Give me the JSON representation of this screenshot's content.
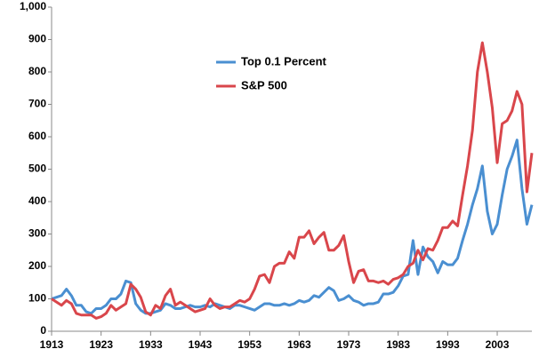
{
  "chart_data": {
    "type": "line",
    "x": [
      1913,
      1914,
      1915,
      1916,
      1917,
      1918,
      1919,
      1920,
      1921,
      1922,
      1923,
      1924,
      1925,
      1926,
      1927,
      1928,
      1929,
      1930,
      1931,
      1932,
      1933,
      1934,
      1935,
      1936,
      1937,
      1938,
      1939,
      1940,
      1941,
      1942,
      1943,
      1944,
      1945,
      1946,
      1947,
      1948,
      1949,
      1950,
      1951,
      1952,
      1953,
      1954,
      1955,
      1956,
      1957,
      1958,
      1959,
      1960,
      1961,
      1962,
      1963,
      1964,
      1965,
      1966,
      1967,
      1968,
      1969,
      1970,
      1971,
      1972,
      1973,
      1974,
      1975,
      1976,
      1977,
      1978,
      1979,
      1980,
      1981,
      1982,
      1983,
      1984,
      1985,
      1986,
      1987,
      1988,
      1989,
      1990,
      1991,
      1992,
      1993,
      1994,
      1995,
      1996,
      1997,
      1998,
      1999,
      2000,
      2001,
      2002,
      2003,
      2004,
      2005,
      2006,
      2007,
      2008,
      2009,
      2010
    ],
    "series": [
      {
        "name": "Top 0.1 Percent",
        "color": "#4a8fd1",
        "values": [
          100,
          105,
          110,
          130,
          110,
          80,
          80,
          60,
          55,
          70,
          70,
          80,
          100,
          100,
          115,
          155,
          150,
          85,
          65,
          55,
          55,
          60,
          65,
          85,
          80,
          70,
          70,
          75,
          80,
          75,
          75,
          80,
          75,
          85,
          80,
          75,
          70,
          80,
          80,
          75,
          70,
          65,
          75,
          85,
          85,
          80,
          80,
          85,
          80,
          85,
          95,
          90,
          95,
          110,
          105,
          120,
          135,
          125,
          95,
          100,
          110,
          95,
          90,
          80,
          85,
          85,
          90,
          115,
          115,
          120,
          140,
          170,
          175,
          280,
          175,
          260,
          230,
          215,
          180,
          215,
          205,
          205,
          225,
          280,
          330,
          390,
          440,
          510,
          370,
          300,
          330,
          420,
          500,
          540,
          590,
          440,
          330,
          390
        ]
      },
      {
        "name": "S&P 500",
        "color": "#d9464b",
        "values": [
          100,
          90,
          80,
          95,
          85,
          55,
          50,
          50,
          50,
          40,
          45,
          55,
          80,
          65,
          75,
          85,
          145,
          130,
          105,
          60,
          50,
          80,
          70,
          110,
          130,
          80,
          90,
          80,
          70,
          60,
          65,
          70,
          100,
          80,
          70,
          75,
          75,
          85,
          95,
          90,
          100,
          130,
          170,
          175,
          150,
          200,
          210,
          210,
          245,
          225,
          290,
          290,
          310,
          270,
          290,
          305,
          250,
          250,
          265,
          295,
          215,
          150,
          185,
          190,
          155,
          155,
          150,
          155,
          145,
          160,
          165,
          175,
          200,
          210,
          250,
          220,
          255,
          250,
          280,
          320,
          320,
          340,
          325,
          420,
          510,
          620,
          800,
          890,
          800,
          690,
          520,
          640,
          650,
          680,
          740,
          700,
          430,
          550
        ]
      }
    ],
    "xlim": [
      1913,
      2010
    ],
    "xticks": [
      1913,
      1923,
      1933,
      1943,
      1953,
      1963,
      1973,
      1983,
      1993,
      2003
    ],
    "ylim": [
      0,
      1000
    ],
    "yticks": [
      0,
      100,
      200,
      300,
      400,
      500,
      600,
      700,
      800,
      900,
      {
        "value": 1000,
        "label": "1,000"
      }
    ],
    "grid": false,
    "legend": "upper center"
  }
}
